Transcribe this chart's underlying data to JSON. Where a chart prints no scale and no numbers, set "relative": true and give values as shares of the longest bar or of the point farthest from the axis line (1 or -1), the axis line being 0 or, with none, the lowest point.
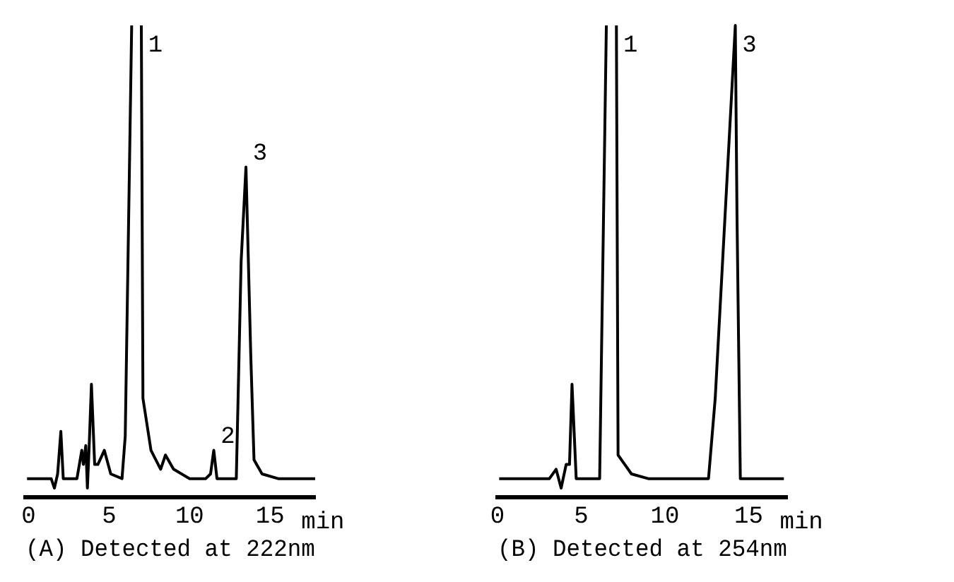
{
  "chart_data": [
    {
      "type": "line",
      "title": "(A) Detected at 222nm",
      "xlabel": "min",
      "relative": true,
      "xlim": [
        -0.2,
        17.8
      ],
      "xticks": [
        0,
        5,
        10,
        15
      ],
      "grid": false,
      "legend": false,
      "tick_labels": "x",
      "marker": "none",
      "line_style": "solid",
      "series": [
        {
          "color": "#000000",
          "x": [
            -0.1,
            1.4,
            1.6,
            1.8,
            2.0,
            2.15,
            3.0,
            3.3,
            3.4,
            3.55,
            3.65,
            3.75,
            3.9,
            4.1,
            4.3,
            4.7,
            5.1,
            5.8,
            6.0,
            6.4,
            6.7,
            7.0,
            7.1,
            7.6,
            8.2,
            8.5,
            9.0,
            10.0,
            11.0,
            11.3,
            11.5,
            11.7,
            12.0,
            12.9,
            13.2,
            13.5,
            13.8,
            14.0,
            14.5,
            15.5,
            17.8
          ],
          "values": [
            0.04,
            0.04,
            0.02,
            0.05,
            0.14,
            0.04,
            0.04,
            0.1,
            0.07,
            0.11,
            0.02,
            0.1,
            0.24,
            0.07,
            0.07,
            0.1,
            0.05,
            0.04,
            0.13,
            1,
            null,
            1,
            0.21,
            0.1,
            0.06,
            0.09,
            0.06,
            0.04,
            0.04,
            0.05,
            0.1,
            0.04,
            0.04,
            0.04,
            0.5,
            0.7,
            0.3,
            0.08,
            0.05,
            0.04,
            0.04
          ]
        }
      ],
      "annotations": [
        {
          "text": "1",
          "x": 7.0,
          "y": 1
        },
        {
          "text": "2",
          "x": 11.5,
          "y": 0.1
        },
        {
          "text": "3",
          "x": 13.5,
          "y": 0.7
        }
      ]
    },
    {
      "type": "line",
      "title": "(B) Detected at 254nm",
      "xlabel": "min",
      "relative": true,
      "xlim": [
        0,
        17.3
      ],
      "xticks": [
        0,
        5,
        10,
        15
      ],
      "grid": false,
      "legend": false,
      "tick_labels": "x",
      "marker": "none",
      "line_style": "solid",
      "series": [
        {
          "color": "#000000",
          "x": [
            0.1,
            3.1,
            3.5,
            3.8,
            4.1,
            4.3,
            4.45,
            4.7,
            6.1,
            6.5,
            6.8,
            7.1,
            7.2,
            7.6,
            8.0,
            9.0,
            12.6,
            13.0,
            14.2,
            14.3,
            14.5,
            17.1
          ],
          "values": [
            0.04,
            0.04,
            0.06,
            0.02,
            0.07,
            0.07,
            0.24,
            0.04,
            0.04,
            1,
            null,
            1,
            0.09,
            0.07,
            0.05,
            0.04,
            0.04,
            0.21,
            1,
            0.6,
            0.04,
            0.04
          ]
        }
      ],
      "annotations": [
        {
          "text": "1",
          "x": 7.1,
          "y": 1
        },
        {
          "text": "3",
          "x": 14.2,
          "y": 1
        }
      ]
    }
  ]
}
